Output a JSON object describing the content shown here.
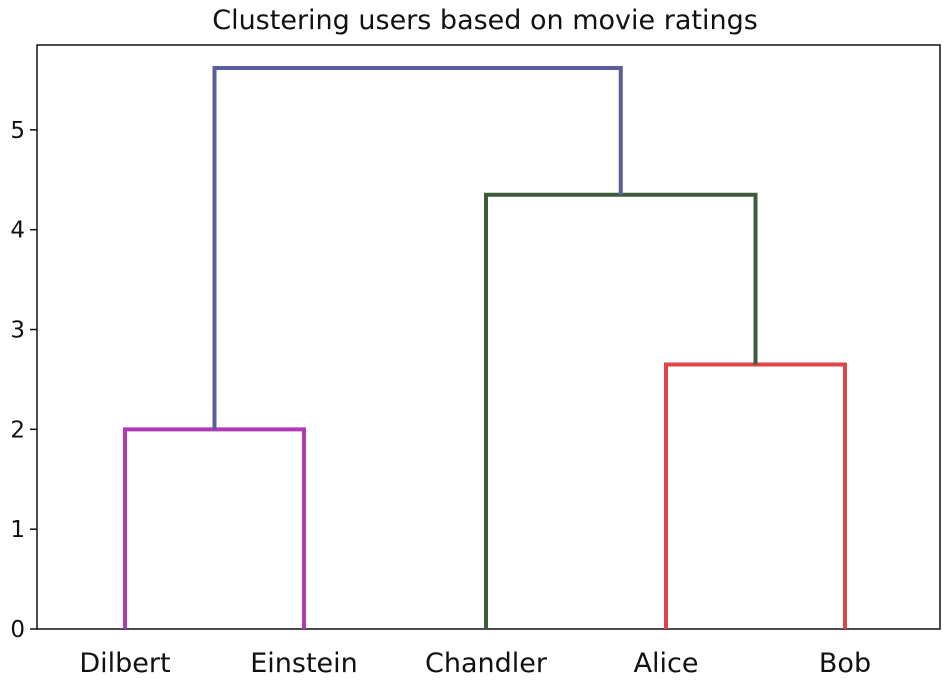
{
  "chart_data": {
    "type": "dendrogram",
    "title": "Clustering users based on movie ratings",
    "xlabel": "",
    "ylabel": "",
    "ylim": [
      0,
      5.85
    ],
    "yticks": [
      0,
      1,
      2,
      3,
      4,
      5
    ],
    "grid": false,
    "leaves": [
      "Dilbert",
      "Einstein",
      "Chandler",
      "Alice",
      "Bob"
    ],
    "links": [
      {
        "left": "Dilbert",
        "right": "Einstein",
        "height": 2.0,
        "color": "#b138b6"
      },
      {
        "left": "Alice",
        "right": "Bob",
        "height": 2.65,
        "color": "#e04444"
      },
      {
        "left": "Chandler",
        "right": "Alice+Bob",
        "height": 4.35,
        "color": "#3d5b3d"
      },
      {
        "left": "Dilbert+Einstein",
        "right": "Chandler+Alice+Bob",
        "height": 5.62,
        "color": "#5b5e9e"
      }
    ]
  }
}
